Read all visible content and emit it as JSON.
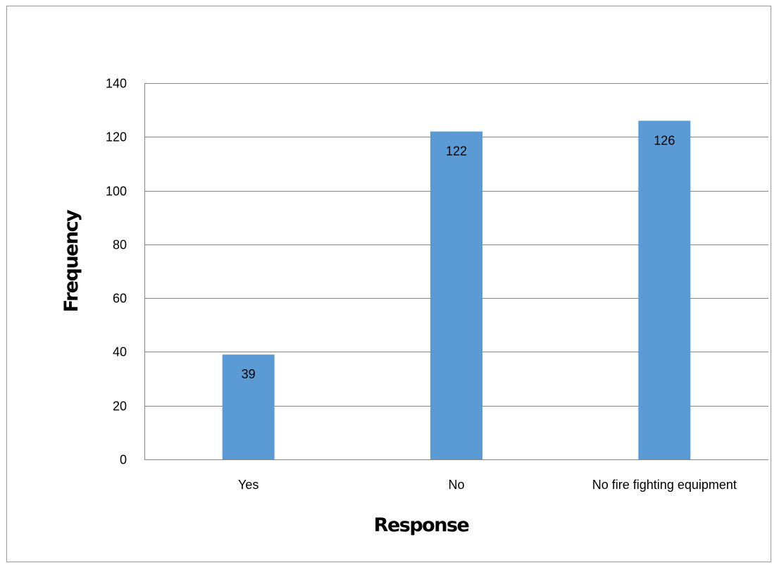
{
  "chart_data": {
    "type": "bar",
    "categories": [
      "Yes",
      "No",
      "No fire fighting equipment"
    ],
    "values": [
      39,
      122,
      126
    ],
    "title": "",
    "xlabel": "Response",
    "ylabel": "Frequency",
    "ylim": [
      0,
      140
    ],
    "yticks": [
      0,
      20,
      40,
      60,
      80,
      100,
      120,
      140
    ],
    "grid": true,
    "legend": "none",
    "data_labels": true,
    "bar_color": "#5b9bd5",
    "grid_color": "#868686"
  }
}
